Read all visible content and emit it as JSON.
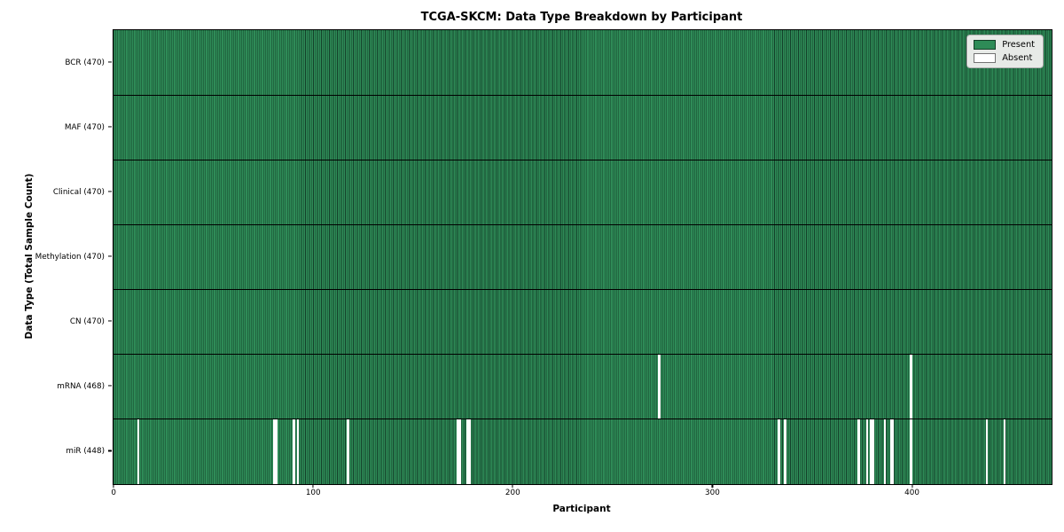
{
  "figure": {
    "title": "TCGA-SKCM: Data Type Breakdown by Participant",
    "xlabel": "Participant",
    "ylabel": "Data Type (Total Sample Count)"
  },
  "legend": {
    "present_label": "Present",
    "absent_label": "Absent"
  },
  "colors": {
    "present": "#2e8b57",
    "present_edge": "#14402a",
    "absent": "#ffffff",
    "separator": "#000000",
    "legend_bg": "#e7eae7",
    "legend_border": "#b0b0b0"
  },
  "chart_data": {
    "type": "heatmap",
    "title": "TCGA-SKCM: Data Type Breakdown by Participant",
    "xlabel": "Participant",
    "ylabel": "Data Type (Total Sample Count)",
    "legend": [
      "Present",
      "Absent"
    ],
    "legend_position": "upper right",
    "n_participants": 470,
    "x_range": [
      0,
      470
    ],
    "x_ticks": [
      0,
      100,
      200,
      300,
      400
    ],
    "cell_states": {
      "present": 1,
      "absent": 0
    },
    "rows": [
      {
        "data_type": "BCR",
        "label": "BCR (470)",
        "present_count": 470,
        "absent_count": 0,
        "absent_participants": []
      },
      {
        "data_type": "MAF",
        "label": "MAF (470)",
        "present_count": 470,
        "absent_count": 0,
        "absent_participants": []
      },
      {
        "data_type": "Clinical",
        "label": "Clinical (470)",
        "present_count": 470,
        "absent_count": 0,
        "absent_participants": []
      },
      {
        "data_type": "Methylation",
        "label": "Methylation (470)",
        "present_count": 470,
        "absent_count": 0,
        "absent_participants": []
      },
      {
        "data_type": "CN",
        "label": "CN (470)",
        "present_count": 470,
        "absent_count": 0,
        "absent_participants": []
      },
      {
        "data_type": "mRNA",
        "label": "mRNA (468)",
        "present_count": 468,
        "absent_count": 2,
        "absent_participants": [
          273,
          399
        ]
      },
      {
        "data_type": "miR",
        "label": "miR (448)",
        "present_count": 448,
        "absent_count": 22,
        "absent_participants": [
          12,
          80,
          81,
          90,
          92,
          117,
          172,
          173,
          177,
          178,
          333,
          336,
          373,
          377,
          379,
          380,
          386,
          389,
          390,
          399,
          437,
          446
        ]
      }
    ]
  }
}
